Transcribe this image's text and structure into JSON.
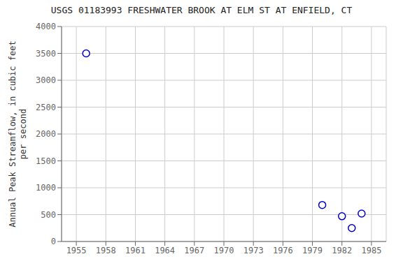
{
  "chart_data": {
    "type": "scatter",
    "title": "USGS 01183993 FRESHWATER BROOK AT ELM ST AT ENFIELD, CT",
    "ylabel": "Annual Peak Streamflow, in cubic feet\nper second",
    "x": [
      1956,
      1980,
      1982,
      1983,
      1984
    ],
    "values": [
      3500,
      680,
      470,
      250,
      520
    ],
    "xlim": [
      1953.5,
      1986.5
    ],
    "ylim": [
      0,
      4000
    ],
    "xticks": [
      1955,
      1958,
      1961,
      1964,
      1967,
      1970,
      1973,
      1976,
      1979,
      1982,
      1985
    ],
    "yticks": [
      0,
      500,
      1000,
      1500,
      2000,
      2500,
      3000,
      3500,
      4000
    ],
    "color": "#0000CC",
    "marker": "circle",
    "grid": true
  }
}
